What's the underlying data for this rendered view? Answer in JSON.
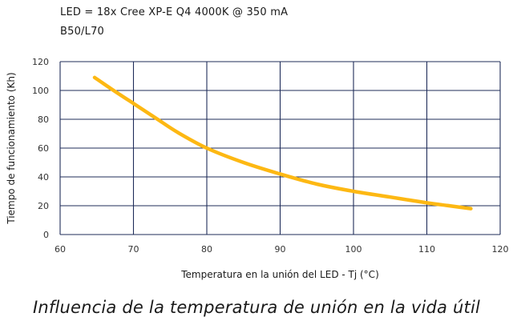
{
  "header": {
    "line1": "LED = 18x Cree XP-E Q4 4000K @ 350 mA",
    "line2": "B50/L70"
  },
  "caption": "Influencia de la temperatura de unión en la vida útil",
  "colors": {
    "curve": "#fdb813",
    "grid": "#1f2d5a"
  },
  "chart_data": {
    "type": "line",
    "xlabel": "Temperatura en la unión del LED - Tj (°C)",
    "ylabel": "Tiempo de funcionamiento (Kh)",
    "xlim": [
      60,
      120
    ],
    "ylim": [
      0,
      120
    ],
    "xticks": [
      60,
      70,
      80,
      90,
      100,
      110,
      120
    ],
    "yticks": [
      0,
      20,
      40,
      60,
      80,
      100,
      120
    ],
    "grid": true,
    "series": [
      {
        "x": [
          64.7,
          67,
          70,
          73,
          76,
          80,
          85,
          90,
          95,
          100,
          105,
          110,
          113,
          116
        ],
        "y": [
          109,
          101,
          91,
          81,
          71,
          60,
          50,
          42,
          35,
          30,
          26,
          22,
          20,
          18
        ]
      }
    ]
  }
}
